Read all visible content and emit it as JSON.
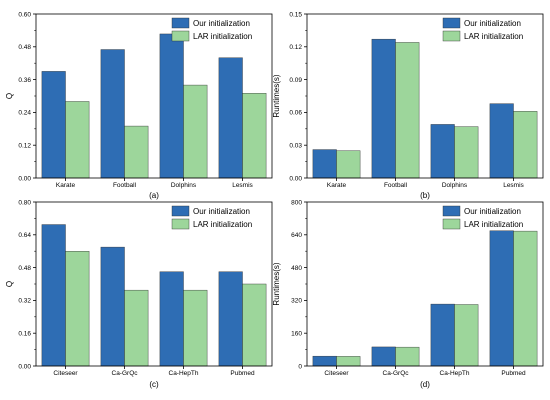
{
  "colors": {
    "ours": "#2e6db4",
    "lar": "#9dd69b",
    "edge": "#2b2b2b"
  },
  "chart_data": [
    {
      "type": "bar",
      "panel_label": "(a)",
      "categories": [
        "Karate",
        "Football",
        "Dolphins",
        "Lesmis"
      ],
      "series": [
        {
          "name": "Our initialization",
          "values": [
            0.39,
            0.47,
            0.527,
            0.44
          ]
        },
        {
          "name": "LAR initialization",
          "values": [
            0.28,
            0.19,
            0.34,
            0.31
          ]
        }
      ],
      "ylabel": "Q",
      "ylim": [
        0,
        0.6
      ],
      "yticks": [
        "0.00",
        "0.12",
        "0.24",
        "0.36",
        "0.48",
        "0.60"
      ],
      "legend": "top-right"
    },
    {
      "type": "bar",
      "panel_label": "(b)",
      "categories": [
        "Karate",
        "Football",
        "Dolphins",
        "Lesmis"
      ],
      "series": [
        {
          "name": "Our initialization",
          "values": [
            0.026,
            0.127,
            0.049,
            0.068
          ]
        },
        {
          "name": "LAR initialization",
          "values": [
            0.025,
            0.124,
            0.047,
            0.061
          ]
        }
      ],
      "ylabel": "Runtimes(s)",
      "ylim": [
        0,
        0.15
      ],
      "yticks": [
        "0.00",
        "0.03",
        "0.06",
        "0.09",
        "0.12",
        "0.15"
      ],
      "legend": "top-right"
    },
    {
      "type": "bar",
      "panel_label": "(c)",
      "categories": [
        "Citeseer",
        "Ca-GrQc",
        "Ca-HepTh",
        "Pubmed"
      ],
      "series": [
        {
          "name": "Our initialization",
          "values": [
            0.69,
            0.58,
            0.46,
            0.46
          ]
        },
        {
          "name": "LAR initialization",
          "values": [
            0.56,
            0.37,
            0.37,
            0.4
          ]
        }
      ],
      "ylabel": "Q",
      "ylim": [
        0,
        0.8
      ],
      "yticks": [
        "0.00",
        "0.16",
        "0.32",
        "0.48",
        "0.64",
        "0.80"
      ],
      "legend": "top-right"
    },
    {
      "type": "bar",
      "panel_label": "(d)",
      "categories": [
        "Citeseer",
        "Ca-GrQc",
        "Ca-HepTh",
        "Pubmed"
      ],
      "series": [
        {
          "name": "Our initialization",
          "values": [
            48,
            93,
            302,
            660
          ]
        },
        {
          "name": "LAR initialization",
          "values": [
            47,
            92,
            300,
            658
          ]
        }
      ],
      "ylabel": "Runtimes(s)",
      "ylim": [
        0,
        800
      ],
      "yticks": [
        "0",
        "160",
        "320",
        "480",
        "640",
        "800"
      ],
      "legend": "top-right"
    }
  ]
}
